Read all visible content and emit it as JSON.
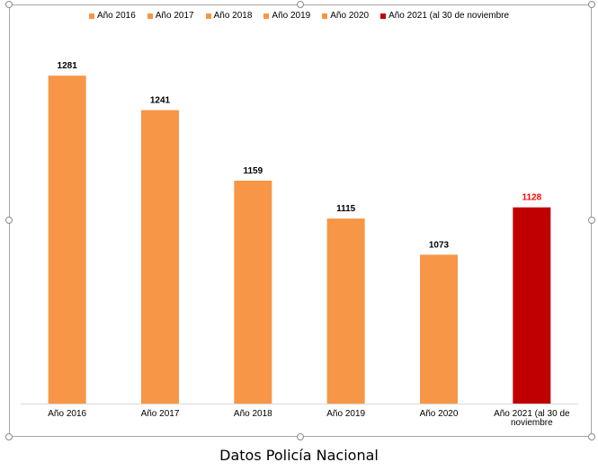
{
  "chart_data": {
    "type": "bar",
    "categories": [
      "Año 2016",
      "Año 2017",
      "Año 2018",
      "Año 2019",
      "Año 2020",
      "Año 2021 (al 30 de noviembre"
    ],
    "tick_labels": [
      [
        "Año 2016"
      ],
      [
        "Año 2017"
      ],
      [
        "Año 2018"
      ],
      [
        "Año 2019"
      ],
      [
        "Año 2020"
      ],
      [
        "Año 2021 (al 30 de",
        "noviembre"
      ]
    ],
    "values": [
      1281,
      1241,
      1159,
      1115,
      1073,
      1128
    ],
    "colors": [
      "#f79646",
      "#f79646",
      "#f79646",
      "#f79646",
      "#f79646",
      "#c00000"
    ],
    "label_colors": [
      "#000000",
      "#000000",
      "#000000",
      "#000000",
      "#000000",
      "#ff0000"
    ],
    "legend": {
      "placement": "top",
      "entries": [
        {
          "label": "Año 2016",
          "color": "#f79646"
        },
        {
          "label": "Año 2017",
          "color": "#f79646"
        },
        {
          "label": "Año 2018",
          "color": "#f79646"
        },
        {
          "label": "Año 2019",
          "color": "#f79646"
        },
        {
          "label": "Año 2020",
          "color": "#f79646"
        },
        {
          "label": "Año 2021 (al 30 de noviembre",
          "color": "#c00000"
        }
      ]
    },
    "ylim": [
      900,
      1300
    ],
    "grid": false,
    "axis_color": "#d9d9d9"
  },
  "caption": "Datos Policía Nacional"
}
